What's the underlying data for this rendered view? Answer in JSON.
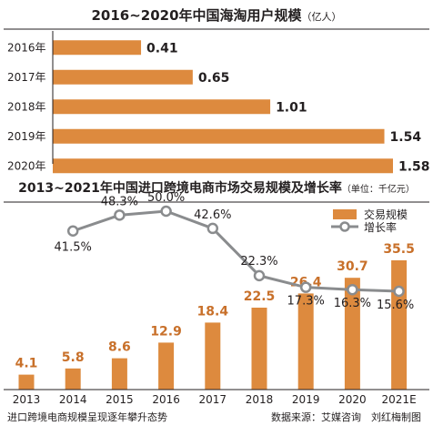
{
  "chart_data": [
    {
      "type": "bar",
      "orientation": "horizontal",
      "title": "2016~2020年中国海淘用户规模",
      "unit": "（亿人）",
      "categories": [
        "2016年",
        "2017年",
        "2018年",
        "2019年",
        "2020年"
      ],
      "values": [
        0.41,
        0.65,
        1.01,
        1.54,
        1.58
      ],
      "value_labels": [
        "0.41",
        "0.65",
        "1.01",
        "1.54",
        "1.58"
      ],
      "xlim": [
        0,
        1.58
      ],
      "grid": false,
      "bar_color": "#dd8a3e"
    },
    {
      "type": "bar",
      "title": "2013~2021年中国进口跨境电商市场交易规模及增长率",
      "unit": "（单位：千亿元）",
      "categories": [
        "2013",
        "2014",
        "2015",
        "2016",
        "2017",
        "2018",
        "2019",
        "2020",
        "2021E"
      ],
      "series": [
        {
          "name": "交易规模",
          "type": "bar",
          "values": [
            4.1,
            5.8,
            8.6,
            12.9,
            18.4,
            22.5,
            26.4,
            30.7,
            35.5
          ],
          "labels": [
            "4.1",
            "5.8",
            "8.6",
            "12.9",
            "18.4",
            "22.5",
            "26.4",
            "30.7",
            "35.5"
          ],
          "color": "#dd8a3e"
        },
        {
          "name": "增长率",
          "type": "line",
          "x": [
            "2014",
            "2015",
            "2016",
            "2017",
            "2018",
            "2019",
            "2020",
            "2021E"
          ],
          "values": [
            41.5,
            48.3,
            50.0,
            42.6,
            22.3,
            17.3,
            16.3,
            15.6
          ],
          "labels": [
            "41.5%",
            "48.3%",
            "50.0%",
            "42.6%",
            "22.3%",
            "17.3%",
            "16.3%",
            "15.6%"
          ],
          "color": "#8a8c8e"
        }
      ],
      "ylim_bar": [
        0,
        35.5
      ],
      "ylim_rate": [
        15.6,
        50.0
      ],
      "legend": "top-right",
      "grid": false
    }
  ],
  "footer": {
    "caption": "进口跨境电商规模呈现逐年攀升态势",
    "source": "数据来源：艾媒咨询",
    "author": "刘红梅制图"
  }
}
